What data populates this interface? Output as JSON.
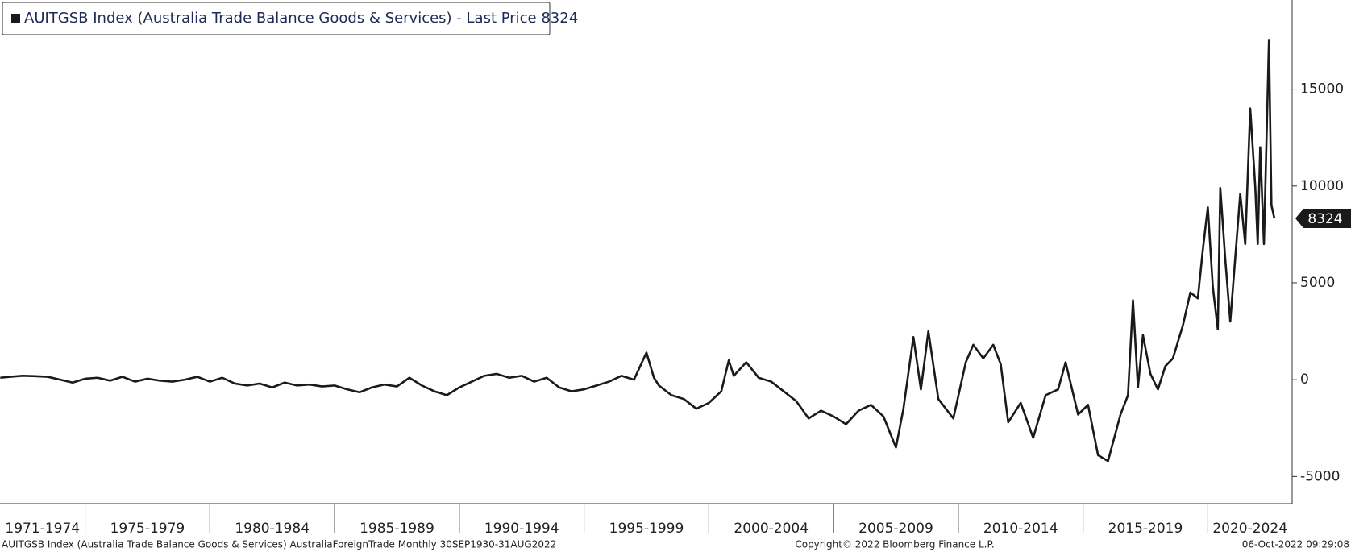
{
  "chart_data": {
    "type": "line",
    "legend": "AUITGSB Index (Australia Trade Balance Goods & Services) - Last Price 8324",
    "last_price": 8324,
    "footer_left": "AUITGSB Index (Australia Trade Balance Goods & Services) AustraliaForeignTrade  Monthly 30SEP1930-31AUG2022",
    "footer_center": "Copyright© 2022 Bloomberg Finance L.P.",
    "footer_right": "06-Oct-2022 09:29:08",
    "xlim": [
      1971.59,
      2023.38
    ],
    "ylim": [
      -6400,
      19600
    ],
    "yticks": [
      -5000,
      0,
      5000,
      10000,
      15000
    ],
    "xticks": [
      {
        "value": 1971,
        "label": "1971-1974"
      },
      {
        "value": 1975,
        "label": "1975-1979"
      },
      {
        "value": 1980,
        "label": "1980-1984"
      },
      {
        "value": 1985,
        "label": "1985-1989"
      },
      {
        "value": 1990,
        "label": "1990-1994"
      },
      {
        "value": 1995,
        "label": "1995-1999"
      },
      {
        "value": 2000,
        "label": "2000-2004"
      },
      {
        "value": 2005,
        "label": "2005-2009"
      },
      {
        "value": 2010,
        "label": "2010-2014"
      },
      {
        "value": 2015,
        "label": "2015-2019"
      },
      {
        "value": 2020,
        "label": "2020-2024"
      }
    ],
    "x": [
      1971.6,
      1972,
      1972.5,
      1973,
      1973.5,
      1974,
      1974.5,
      1975,
      1975.5,
      1976,
      1976.5,
      1977,
      1977.5,
      1978,
      1978.5,
      1979,
      1979.5,
      1980,
      1980.5,
      1981,
      1981.5,
      1982,
      1982.5,
      1983,
      1983.5,
      1984,
      1984.5,
      1985,
      1985.5,
      1986,
      1986.5,
      1987,
      1987.5,
      1988,
      1988.5,
      1989,
      1989.5,
      1990,
      1990.5,
      1991,
      1991.5,
      1992,
      1992.5,
      1993,
      1993.5,
      1994,
      1994.5,
      1995,
      1995.5,
      1996,
      1996.5,
      1997,
      1997.5,
      1997.8,
      1998,
      1998.5,
      1999,
      1999.5,
      2000,
      2000.5,
      2000.8,
      2001,
      2001.5,
      2002,
      2002.5,
      2003,
      2003.5,
      2004,
      2004.5,
      2005,
      2005.5,
      2006,
      2006.5,
      2007,
      2007.5,
      2007.8,
      2008.2,
      2008.5,
      2008.8,
      2009.2,
      2009.8,
      2010.3,
      2010.6,
      2011,
      2011.4,
      2011.7,
      2012,
      2012.5,
      2013,
      2013.5,
      2014,
      2014.3,
      2014.8,
      2015.2,
      2015.6,
      2016,
      2016.5,
      2016.8,
      2017,
      2017.2,
      2017.4,
      2017.7,
      2018,
      2018.3,
      2018.6,
      2019,
      2019.3,
      2019.6,
      2019.8,
      2020,
      2020.2,
      2020.4,
      2020.5,
      2020.7,
      2020.9,
      2021.1,
      2021.3,
      2021.5,
      2021.7,
      2021.9,
      2022,
      2022.1,
      2022.25,
      2022.45,
      2022.55,
      2022.67
    ],
    "series": [
      {
        "name": "AUITGSB Index",
        "color": "#1a1a1a",
        "values": [
          100,
          150,
          200,
          180,
          150,
          0,
          -150,
          50,
          100,
          -50,
          150,
          -100,
          50,
          -50,
          -100,
          0,
          150,
          -100,
          100,
          -200,
          -300,
          -200,
          -400,
          -150,
          -300,
          -250,
          -350,
          -300,
          -500,
          -650,
          -400,
          -250,
          -350,
          100,
          -300,
          -600,
          -800,
          -400,
          -100,
          200,
          300,
          100,
          200,
          -100,
          100,
          -400,
          -600,
          -500,
          -300,
          -100,
          200,
          0,
          1400,
          100,
          -300,
          -800,
          -1000,
          -1500,
          -1200,
          -600,
          1000,
          200,
          900,
          100,
          -100,
          -600,
          -1100,
          -2000,
          -1600,
          -1900,
          -2300,
          -1600,
          -1300,
          -1900,
          -3500,
          -1500,
          2200,
          -500,
          2500,
          -1000,
          -2000,
          900,
          1800,
          1100,
          1800,
          800,
          -2200,
          -1200,
          -3000,
          -800,
          -500,
          900,
          -1800,
          -1300,
          -3900,
          -4200,
          -1800,
          -800,
          4100,
          -400,
          2300,
          300,
          -500,
          700,
          1100,
          2800,
          4500,
          4200,
          6700,
          8900,
          4800,
          2600,
          9900,
          6200,
          3000,
          6300,
          9600,
          7000,
          14000,
          10000,
          7000,
          12000,
          7000,
          17500,
          9000,
          8324
        ]
      }
    ]
  }
}
